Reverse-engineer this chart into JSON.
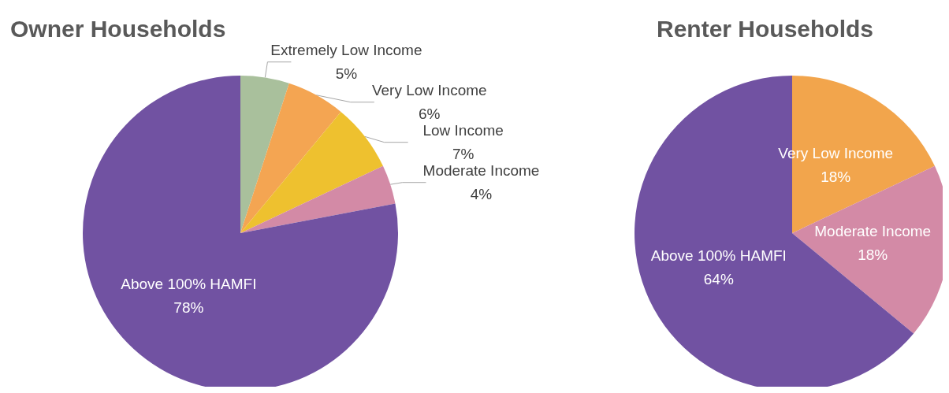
{
  "chart_data": [
    {
      "type": "pie",
      "title": "Owner Households",
      "categories": [
        "Extremely Low Income",
        "Very Low Income",
        "Low Income",
        "Moderate Income",
        "Above 100% HAMFI"
      ],
      "values": [
        5,
        6,
        7,
        4,
        78
      ],
      "colors": [
        "#a9c09c",
        "#f4a552",
        "#eec12f",
        "#d38aa6",
        "#7152a2"
      ],
      "value_labels": [
        "5%",
        "6%",
        "7%",
        "4%",
        "78%"
      ]
    },
    {
      "type": "pie",
      "title": "Renter Households",
      "categories": [
        "Very Low Income",
        "Moderate Income",
        "Above 100% HAMFI"
      ],
      "values": [
        18,
        18,
        64
      ],
      "colors": [
        "#f2a54c",
        "#d38aa6",
        "#7152a2"
      ],
      "value_labels": [
        "18%",
        "18%",
        "64%"
      ]
    }
  ]
}
